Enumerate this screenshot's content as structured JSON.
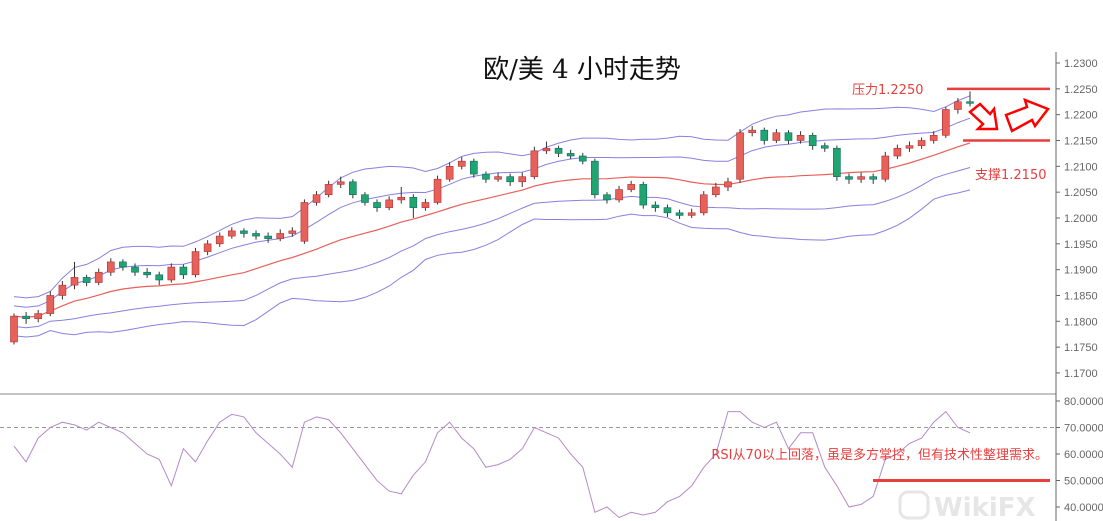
{
  "chart_data": {
    "type": "candlestick",
    "title": "欧/美 4 小时走势",
    "price_axis": {
      "ylim": [
        1.1675,
        1.231
      ],
      "ticks": [
        "1.2300",
        "1.2250",
        "1.2200",
        "1.2150",
        "1.2100",
        "1.2050",
        "1.2000",
        "1.1950",
        "1.1900",
        "1.1850",
        "1.1800",
        "1.1750",
        "1.1700"
      ]
    },
    "rsi_axis": {
      "ylim": [
        35,
        80
      ],
      "ticks": [
        "80.0000",
        "70.0000",
        "60.0000",
        "50.0000",
        "40.0000"
      ]
    },
    "colors": {
      "up": "#e8605a",
      "down": "#1fa66e",
      "bands": "#8b7fe0",
      "middle": "#e8605a",
      "rsi": "#b58ac9",
      "annotation": "#e83e3e"
    },
    "candles": [
      [
        1.176,
        1.1815,
        1.1755,
        1.181
      ],
      [
        1.181,
        1.1818,
        1.1795,
        1.1805
      ],
      [
        1.1805,
        1.1822,
        1.1798,
        1.1815
      ],
      [
        1.1815,
        1.1858,
        1.181,
        1.185
      ],
      [
        1.185,
        1.1878,
        1.1842,
        1.187
      ],
      [
        1.187,
        1.1915,
        1.1862,
        1.1885
      ],
      [
        1.1885,
        1.189,
        1.1868,
        1.1875
      ],
      [
        1.1875,
        1.1902,
        1.187,
        1.1895
      ],
      [
        1.1895,
        1.1922,
        1.1888,
        1.1915
      ],
      [
        1.1915,
        1.192,
        1.1898,
        1.1905
      ],
      [
        1.1905,
        1.1912,
        1.1888,
        1.1895
      ],
      [
        1.1895,
        1.1903,
        1.1884,
        1.189
      ],
      [
        1.189,
        1.1896,
        1.187,
        1.188
      ],
      [
        1.188,
        1.1912,
        1.1875,
        1.1905
      ],
      [
        1.1905,
        1.191,
        1.1882,
        1.189
      ],
      [
        1.189,
        1.1942,
        1.1885,
        1.1935
      ],
      [
        1.1935,
        1.1957,
        1.1928,
        1.195
      ],
      [
        1.195,
        1.1972,
        1.1944,
        1.1965
      ],
      [
        1.1965,
        1.1982,
        1.196,
        1.1975
      ],
      [
        1.1975,
        1.198,
        1.1962,
        1.197
      ],
      [
        1.197,
        1.1976,
        1.1958,
        1.1965
      ],
      [
        1.1965,
        1.1972,
        1.1952,
        1.196
      ],
      [
        1.196,
        1.1978,
        1.1955,
        1.197
      ],
      [
        1.197,
        1.1982,
        1.1964,
        1.1975
      ],
      [
        1.1955,
        1.2036,
        1.195,
        1.203
      ],
      [
        1.203,
        1.2052,
        1.2024,
        1.2045
      ],
      [
        1.2045,
        1.2072,
        1.204,
        1.2065
      ],
      [
        1.2065,
        1.208,
        1.2058,
        1.207
      ],
      [
        1.207,
        1.2075,
        1.2038,
        1.2045
      ],
      [
        1.2045,
        1.205,
        1.2024,
        1.203
      ],
      [
        1.203,
        1.2036,
        1.2012,
        1.202
      ],
      [
        1.202,
        1.2042,
        1.2015,
        1.2035
      ],
      [
        1.2035,
        1.206,
        1.2028,
        1.204
      ],
      [
        1.204,
        1.2046,
        1.2,
        1.202
      ],
      [
        1.202,
        1.2037,
        1.2014,
        1.203
      ],
      [
        1.203,
        1.2082,
        1.2026,
        1.2075
      ],
      [
        1.2075,
        1.2108,
        1.207,
        1.21
      ],
      [
        1.21,
        1.2118,
        1.2094,
        1.211
      ],
      [
        1.211,
        1.2115,
        1.2078,
        1.2085
      ],
      [
        1.2085,
        1.209,
        1.2068,
        1.2075
      ],
      [
        1.2075,
        1.2088,
        1.207,
        1.208
      ],
      [
        1.208,
        1.2086,
        1.2062,
        1.207
      ],
      [
        1.207,
        1.2088,
        1.206,
        1.208
      ],
      [
        1.208,
        1.2138,
        1.2075,
        1.213
      ],
      [
        1.213,
        1.2148,
        1.2124,
        1.2135
      ],
      [
        1.2135,
        1.214,
        1.2118,
        1.2125
      ],
      [
        1.2125,
        1.2132,
        1.2114,
        1.212
      ],
      [
        1.212,
        1.2126,
        1.2104,
        1.211
      ],
      [
        1.211,
        1.2115,
        1.2038,
        1.2045
      ],
      [
        1.2045,
        1.205,
        1.2028,
        1.2035
      ],
      [
        1.2035,
        1.2062,
        1.203,
        1.2055
      ],
      [
        1.2055,
        1.2072,
        1.205,
        1.2065
      ],
      [
        1.2065,
        1.207,
        1.2018,
        1.2025
      ],
      [
        1.2025,
        1.2032,
        1.2012,
        1.202
      ],
      [
        1.202,
        1.2026,
        1.2002,
        1.201
      ],
      [
        1.201,
        1.2016,
        1.1998,
        1.2005
      ],
      [
        1.2005,
        1.2018,
        1.2,
        1.201
      ],
      [
        1.201,
        1.2052,
        1.2005,
        1.2045
      ],
      [
        1.2045,
        1.2068,
        1.204,
        1.206
      ],
      [
        1.206,
        1.2078,
        1.2052,
        1.207
      ],
      [
        1.2075,
        1.2172,
        1.2068,
        1.2165
      ],
      [
        1.2165,
        1.2178,
        1.2158,
        1.217
      ],
      [
        1.217,
        1.2175,
        1.2142,
        1.215
      ],
      [
        1.215,
        1.2172,
        1.2145,
        1.2165
      ],
      [
        1.2165,
        1.217,
        1.2143,
        1.215
      ],
      [
        1.215,
        1.2168,
        1.2144,
        1.216
      ],
      [
        1.216,
        1.2165,
        1.2132,
        1.214
      ],
      [
        1.214,
        1.2146,
        1.2128,
        1.2135
      ],
      [
        1.2135,
        1.214,
        1.2072,
        1.208
      ],
      [
        1.208,
        1.2086,
        1.2066,
        1.2075
      ],
      [
        1.2075,
        1.2088,
        1.2068,
        1.208
      ],
      [
        1.208,
        1.2086,
        1.2066,
        1.2075
      ],
      [
        1.2075,
        1.2128,
        1.207,
        1.212
      ],
      [
        1.212,
        1.2142,
        1.2114,
        1.2135
      ],
      [
        1.2135,
        1.2148,
        1.2128,
        1.214
      ],
      [
        1.214,
        1.2156,
        1.2134,
        1.215
      ],
      [
        1.215,
        1.2168,
        1.2144,
        1.216
      ],
      [
        1.216,
        1.2215,
        1.2155,
        1.221
      ],
      [
        1.221,
        1.2232,
        1.2202,
        1.2225
      ],
      [
        1.2225,
        1.2245,
        1.2216,
        1.2222
      ]
    ],
    "rsi": [
      63,
      57,
      66,
      70,
      72,
      71,
      69,
      72,
      70,
      68,
      64,
      60,
      58,
      48,
      62,
      57,
      65,
      72,
      75,
      74,
      68,
      64,
      60,
      55,
      72,
      74,
      73,
      68,
      62,
      56,
      50,
      46,
      45,
      52,
      57,
      68,
      72,
      66,
      62,
      55,
      56,
      58,
      62,
      70,
      68,
      66,
      60,
      55,
      38,
      40,
      36,
      38,
      37,
      38,
      42,
      44,
      48,
      55,
      60,
      76,
      76,
      72,
      70,
      72,
      62,
      68,
      68,
      55,
      48,
      40,
      41,
      44,
      58,
      60,
      64,
      66,
      72,
      76,
      70,
      68
    ],
    "rsi_reference_level": 70,
    "annotations": {
      "resistance_label": "压力1.2250",
      "resistance": 1.225,
      "support_label": "支撑1.2150",
      "support": 1.215,
      "rsi_note": "RSI从70以上回落，虽是多方掌控，但有技术性整理需求。",
      "rsi_line_level": 50
    },
    "watermark": "WikiFX"
  }
}
